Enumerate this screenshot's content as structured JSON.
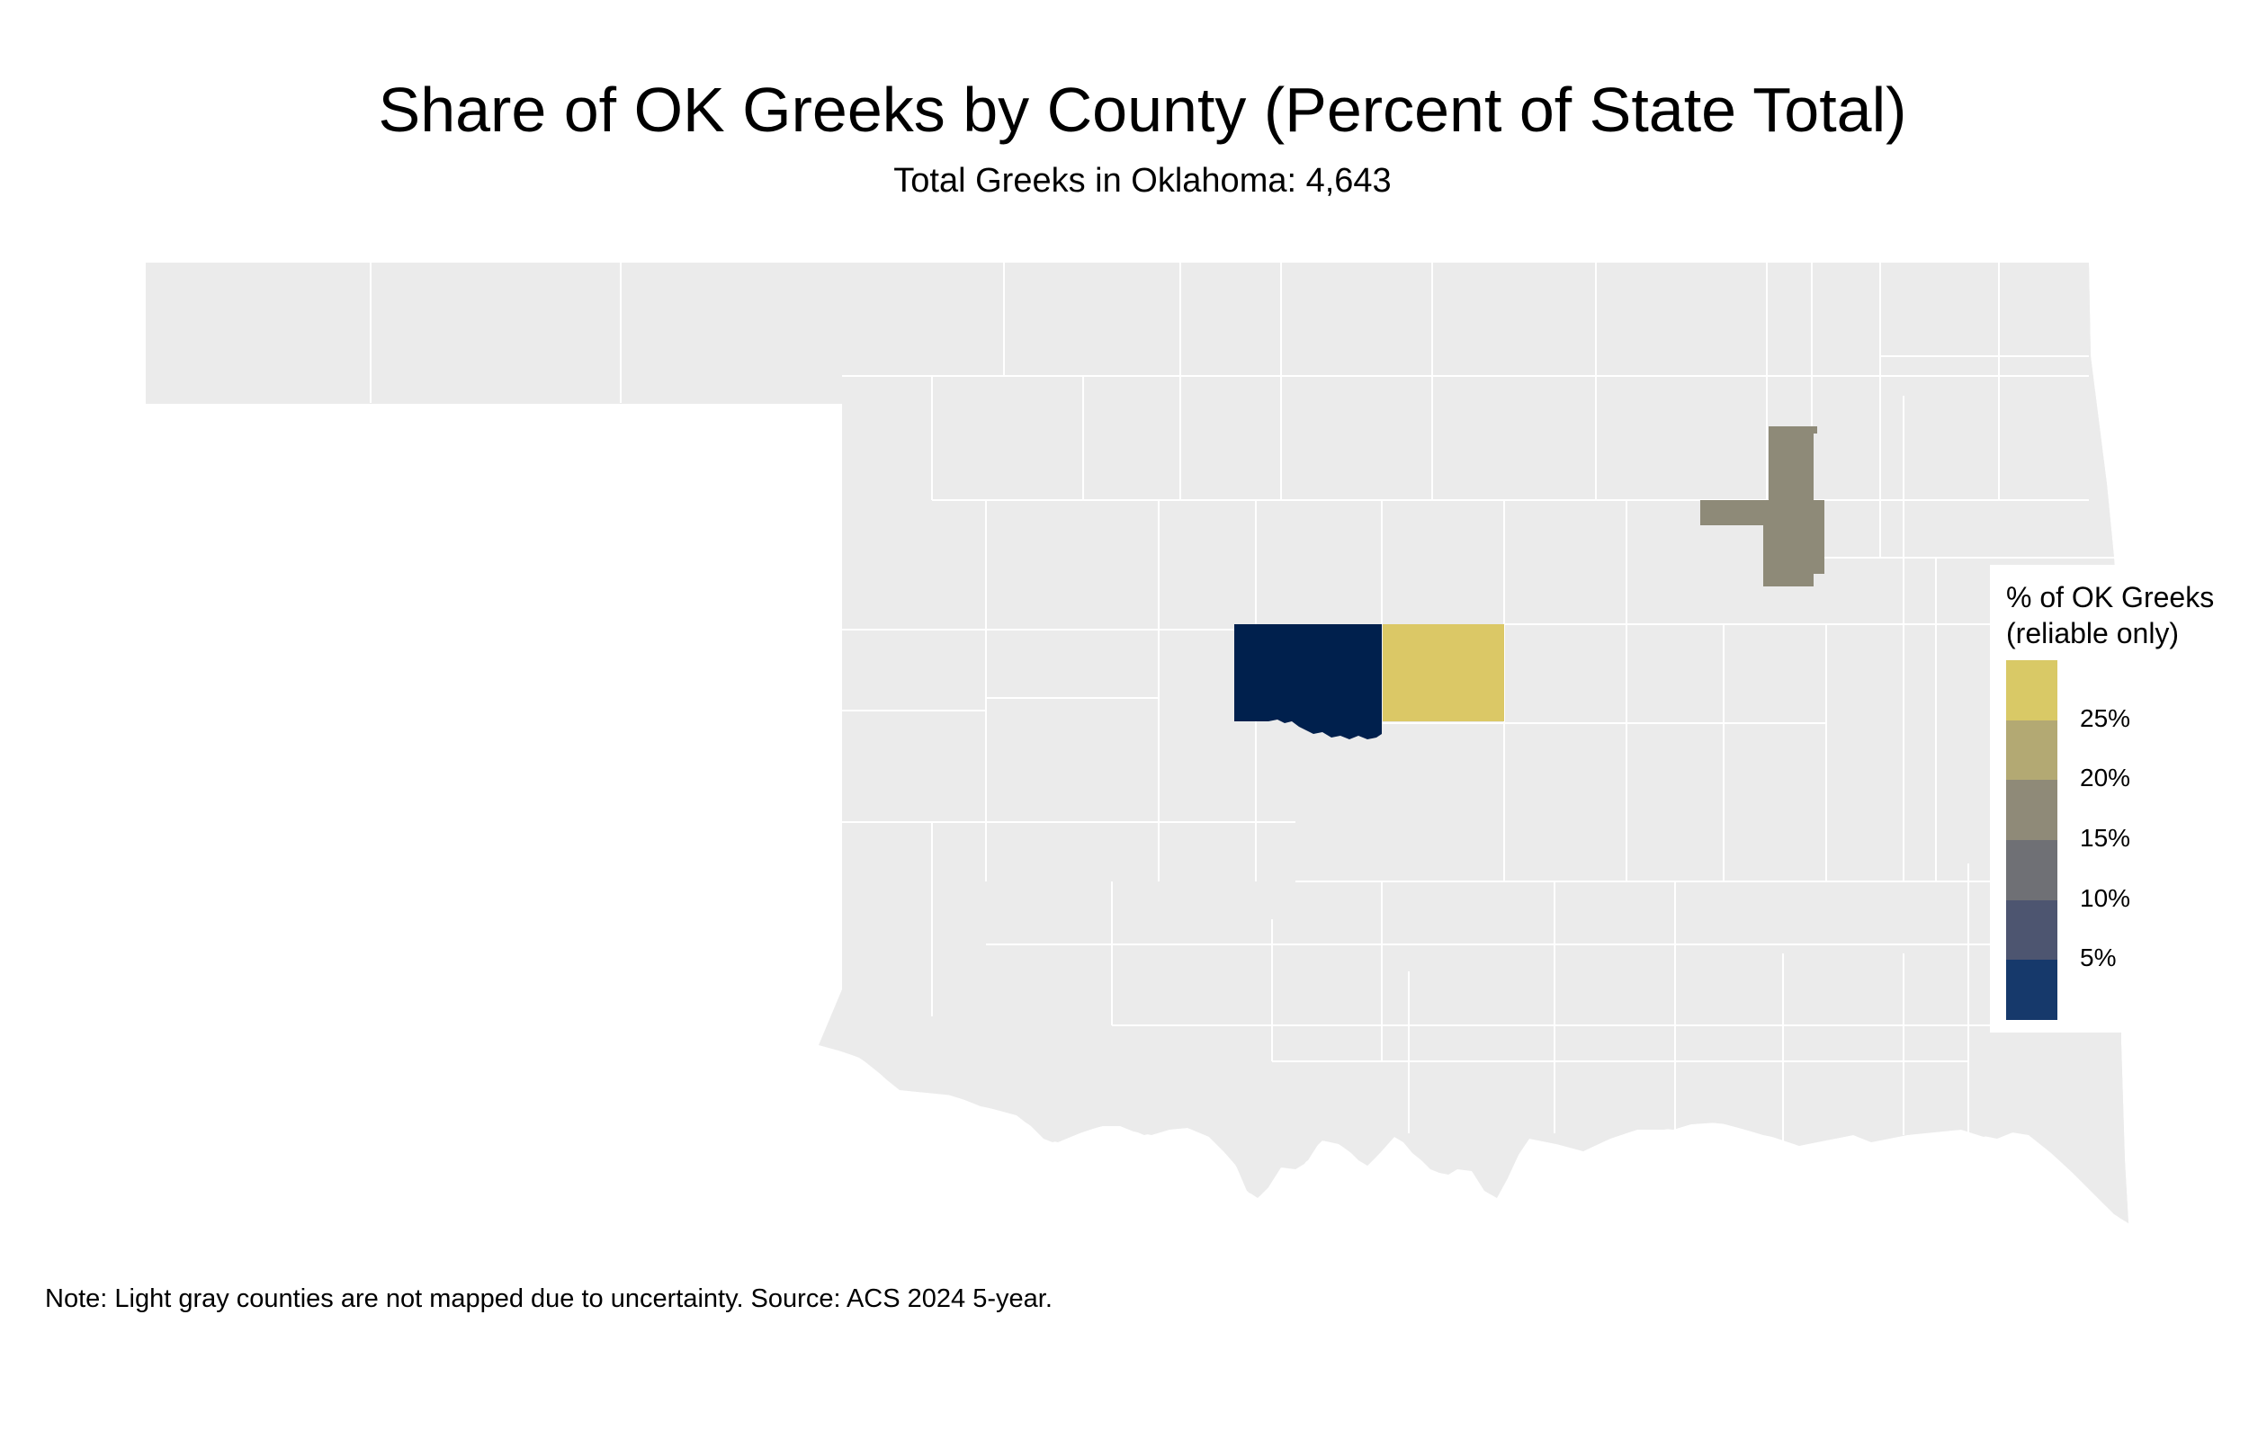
{
  "title": "Share of OK Greeks by County (Percent of State Total)",
  "subtitle": "Total Greeks in Oklahoma: 4,643",
  "note": "Note: Light gray counties are not mapped due to uncertainty. Source: ACS 2024 5-year.",
  "legend": {
    "title_line1": "% of OK Greeks",
    "title_line2": "(reliable only)",
    "labels": [
      "25%",
      "20%",
      "15%",
      "10%",
      "5%"
    ],
    "swatch_colors": [
      "#d9c966",
      "#b3a973",
      "#8f8a78",
      "#6f7075",
      "#4d5570",
      "#16396b"
    ]
  },
  "colors": {
    "not_mapped": "#ebebeb",
    "oklahoma_county": "#00204d",
    "cleveland_county": "#dbc866",
    "tulsa_county": "#8e8a78"
  },
  "chart_data": {
    "type": "choropleth",
    "title": "Share of OK Greeks by County (Percent of State Total)",
    "subtitle": "Total Greeks in Oklahoma: 4,643",
    "scale_breaks": [
      5,
      10,
      15,
      20,
      25
    ],
    "unit": "% of OK Greeks",
    "mapped_regions": [
      {
        "region": "central county (dark navy)",
        "value_percent_range": [
          0,
          5
        ]
      },
      {
        "region": "east-central county (gold)",
        "value_percent_range": [
          25,
          30
        ]
      },
      {
        "region": "northeast county (gray-olive)",
        "value_percent_range": [
          15,
          20
        ]
      }
    ],
    "unmapped_color": "#ebebeb"
  }
}
